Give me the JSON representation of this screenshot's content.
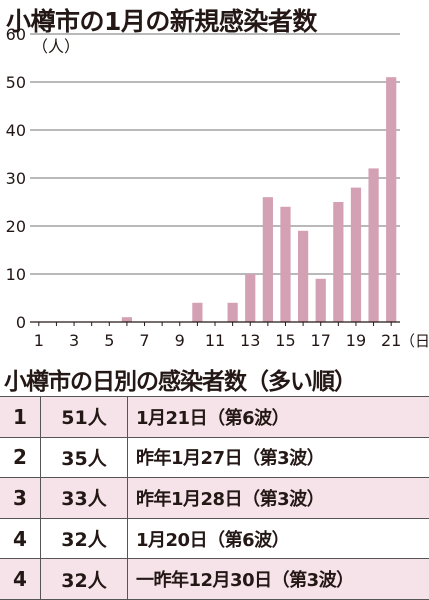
{
  "chart_data": {
    "type": "bar",
    "title": "小樽市の1月の新規感染者数",
    "ylabel": "（人）",
    "xlabel": "（日）",
    "ylim": [
      0,
      60
    ],
    "yticks": [
      0,
      10,
      20,
      30,
      40,
      50,
      60
    ],
    "x": [
      1,
      2,
      3,
      4,
      5,
      6,
      7,
      8,
      9,
      10,
      11,
      12,
      13,
      14,
      15,
      16,
      17,
      18,
      19,
      20,
      21
    ],
    "xtick_labels": [
      "1",
      "3",
      "5",
      "7",
      "9",
      "11",
      "13",
      "15",
      "17",
      "19",
      "21"
    ],
    "values": [
      0,
      0,
      0,
      0,
      0,
      1,
      0,
      0,
      0,
      4,
      0,
      4,
      10,
      26,
      24,
      19,
      9,
      25,
      28,
      32,
      51
    ],
    "grid": true,
    "bar_color": "#d4a0b4"
  },
  "ranking": {
    "title": "小樽市の日別の感染者数（多い順）",
    "rows": [
      {
        "rank": "1",
        "count": "51人",
        "date": "1月21日（第6波）"
      },
      {
        "rank": "2",
        "count": "35人",
        "date": "昨年1月27日（第3波）"
      },
      {
        "rank": "3",
        "count": "33人",
        "date": "昨年1月28日（第3波）"
      },
      {
        "rank": "4",
        "count": "32人",
        "date": "1月20日（第6波）"
      },
      {
        "rank": "4",
        "count": "32人",
        "date": "一昨年12月30日（第3波）"
      }
    ],
    "stripe_color": "#f6e3ea"
  }
}
